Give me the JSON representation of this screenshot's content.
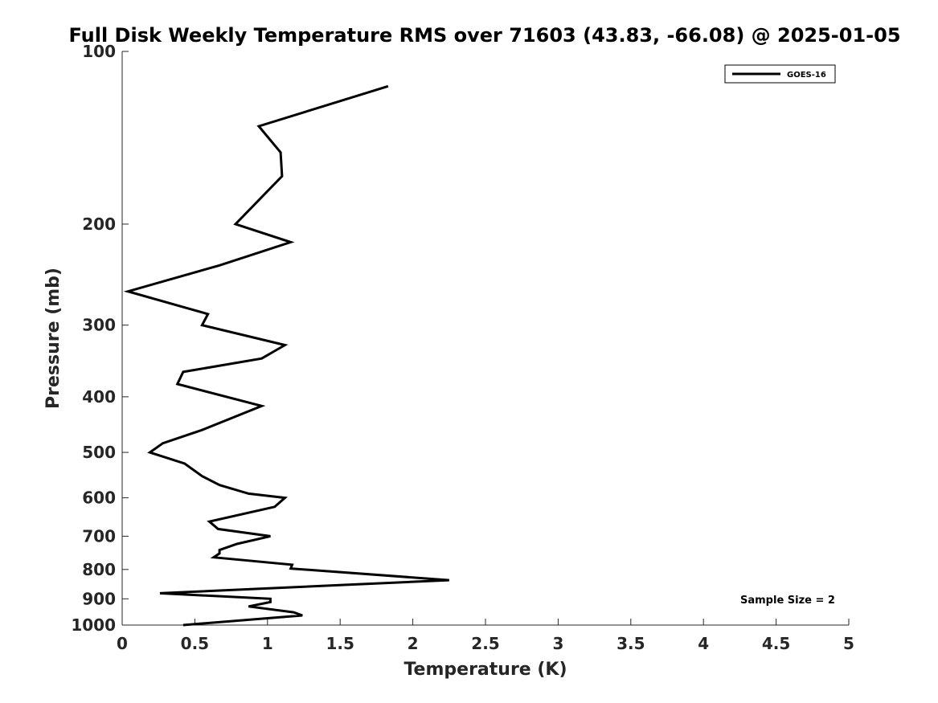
{
  "chart_data": {
    "type": "line",
    "title": "Full Disk Weekly Temperature RMS over 71603 (43.83, -66.08) @ 2025-01-05",
    "xlabel": "Temperature (K)",
    "ylabel": "Pressure (mb)",
    "xlim": [
      0,
      5
    ],
    "ylim": [
      100,
      1000
    ],
    "y_scale": "log",
    "y_direction": "reversed",
    "x_ticks": [
      0,
      0.5,
      1,
      1.5,
      2,
      2.5,
      3,
      3.5,
      4,
      4.5,
      5
    ],
    "x_tick_labels": [
      "0",
      "0.5",
      "1",
      "1.5",
      "2",
      "2.5",
      "3",
      "3.5",
      "4",
      "4.5",
      "5"
    ],
    "y_ticks": [
      100,
      200,
      300,
      400,
      500,
      600,
      700,
      800,
      900,
      1000
    ],
    "y_tick_labels": [
      "100",
      "200",
      "300",
      "400",
      "500",
      "600",
      "700",
      "800",
      "900",
      "1000"
    ],
    "grid": false,
    "legend_position": "top-right",
    "series": [
      {
        "name": "GOES-16",
        "color": "#000000",
        "points": [
          [
            1.83,
            115
          ],
          [
            0.94,
            135
          ],
          [
            1.09,
            150
          ],
          [
            1.1,
            165
          ],
          [
            0.78,
            200
          ],
          [
            1.16,
            215
          ],
          [
            0.67,
            236
          ],
          [
            0.04,
            262
          ],
          [
            0.59,
            287
          ],
          [
            0.55,
            300
          ],
          [
            1.12,
            325
          ],
          [
            0.96,
            343
          ],
          [
            0.42,
            362
          ],
          [
            0.38,
            380
          ],
          [
            0.96,
            415
          ],
          [
            0.55,
            457
          ],
          [
            0.28,
            482
          ],
          [
            0.19,
            500
          ],
          [
            0.43,
            523
          ],
          [
            0.55,
            550
          ],
          [
            0.67,
            570
          ],
          [
            0.87,
            590
          ],
          [
            1.12,
            600
          ],
          [
            1.05,
            622
          ],
          [
            0.6,
            660
          ],
          [
            0.66,
            680
          ],
          [
            1.02,
            700
          ],
          [
            0.79,
            722
          ],
          [
            0.67,
            740
          ],
          [
            0.67,
            750
          ],
          [
            0.63,
            762
          ],
          [
            1.17,
            785
          ],
          [
            1.16,
            797
          ],
          [
            2.25,
            835
          ],
          [
            0.26,
            880
          ],
          [
            1.02,
            900
          ],
          [
            1.02,
            912
          ],
          [
            0.87,
            928
          ],
          [
            1.18,
            950
          ],
          [
            1.24,
            962
          ],
          [
            0.42,
            1000
          ]
        ]
      }
    ],
    "annotation": "Sample Size = 2"
  }
}
